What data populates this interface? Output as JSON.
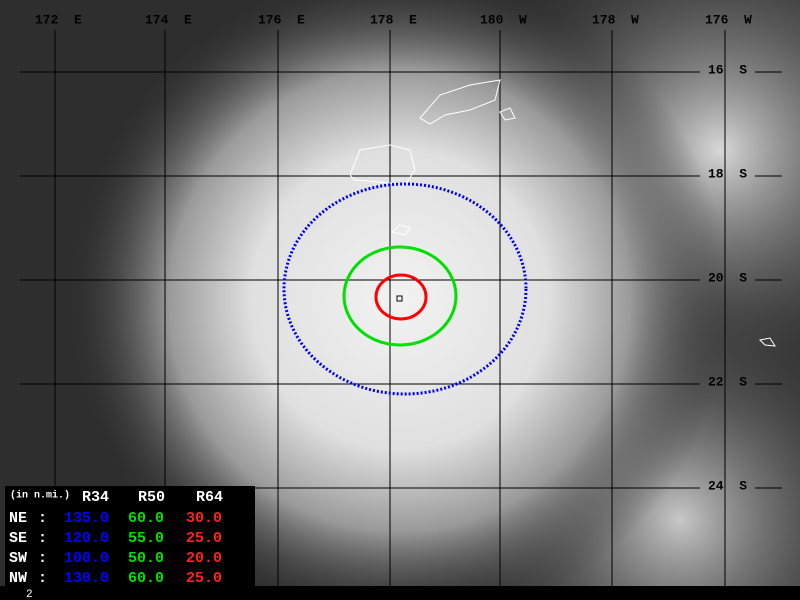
{
  "grid": {
    "longitudes": [
      "172  E",
      "174  E",
      "176  E",
      "178  E",
      "180  W",
      "178  W",
      "176  W"
    ],
    "latitudes": [
      "16  S",
      "18  S",
      "20  S",
      "22  S",
      "24  S"
    ]
  },
  "wind_radii": {
    "unit_note": "(in n.mi.)",
    "columns": [
      "R34",
      "R50",
      "R64"
    ],
    "separator": ":",
    "rows": [
      {
        "quadrant": "NE",
        "values": [
          "135.0",
          "60.0",
          "30.0"
        ]
      },
      {
        "quadrant": "SE",
        "values": [
          "120.0",
          "55.0",
          "25.0"
        ]
      },
      {
        "quadrant": "SW",
        "values": [
          "100.0",
          "50.0",
          "20.0"
        ]
      },
      {
        "quadrant": "NW",
        "values": [
          "130.0",
          "60.0",
          "25.0"
        ]
      }
    ]
  },
  "frame_number": "2"
}
